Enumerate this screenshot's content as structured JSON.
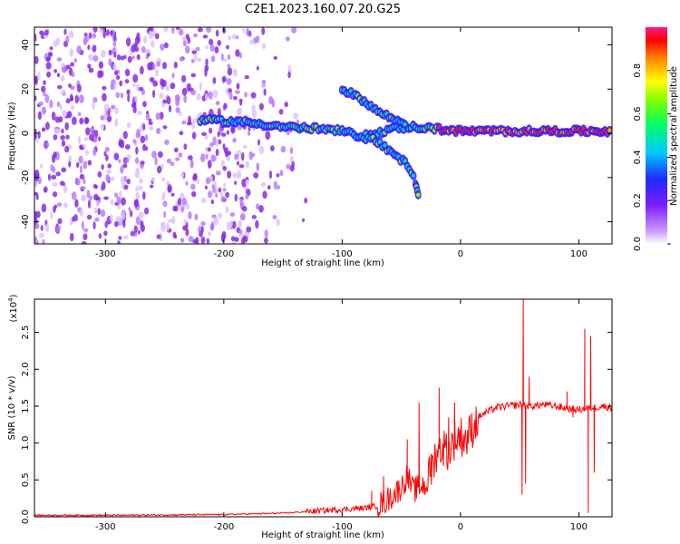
{
  "title": "C2E1.2023.160.07.20.G25",
  "chart_data": [
    {
      "type": "heatmap",
      "xlabel": "Height of straight line (km)",
      "ylabel": "Frequency (Hz)",
      "xlim": [
        -360,
        128
      ],
      "ylim": [
        -50,
        48
      ],
      "xticks": [
        -300,
        -200,
        -100,
        0,
        100
      ],
      "yticks": [
        -40,
        -20,
        0,
        20,
        40
      ],
      "colorbar": {
        "label": "Normalized spectral amplitude",
        "ticks": [
          0.0,
          0.2,
          0.4,
          0.6,
          0.8
        ],
        "range": [
          0,
          1
        ],
        "colormap": "rainbow (white/violet low → blue → cyan → green → yellow → red high)"
      },
      "features": {
        "noise_region_x": [
          -360,
          -130
        ],
        "main_track": [
          [
            -220,
            6
          ],
          [
            -180,
            5
          ],
          [
            -150,
            3
          ],
          [
            -120,
            2
          ],
          [
            -100,
            1
          ],
          [
            -80,
            -2
          ],
          [
            -60,
            2
          ],
          [
            -40,
            3
          ],
          [
            -20,
            2
          ],
          [
            0,
            1
          ],
          [
            50,
            1
          ],
          [
            128,
            1
          ]
        ],
        "upper_branch": [
          [
            -100,
            20
          ],
          [
            -85,
            16
          ],
          [
            -70,
            10
          ],
          [
            -55,
            6
          ],
          [
            -45,
            4
          ]
        ],
        "lower_branch": [
          [
            -80,
            0
          ],
          [
            -60,
            -8
          ],
          [
            -45,
            -14
          ],
          [
            -38,
            -22
          ],
          [
            -35,
            -30
          ]
        ]
      }
    },
    {
      "type": "line",
      "xlabel": "Height of straight line (km)",
      "ylabel": "SNR (10 * v/v)",
      "multiplier": "(x10",
      "multiplier_exp": "4",
      "multiplier_close": ")",
      "xlim": [
        -360,
        128
      ],
      "ylim": [
        0,
        2.95
      ],
      "xticks": [
        -300,
        -200,
        -100,
        0,
        100
      ],
      "yticks": [
        "0.0",
        "0.5",
        "1.0",
        "1.5",
        "2.0",
        "2.5"
      ],
      "series": [
        {
          "color": "#ff0000",
          "points": [
            [
              -360,
              0.02
            ],
            [
              -300,
              0.02
            ],
            [
              -250,
              0.025
            ],
            [
              -200,
              0.03
            ],
            [
              -150,
              0.05
            ],
            [
              -100,
              0.1
            ],
            [
              -80,
              0.12
            ],
            [
              -70,
              0.15
            ],
            [
              -60,
              0.25
            ],
            [
              -50,
              0.4
            ],
            [
              -45,
              0.55
            ],
            [
              -40,
              0.35
            ],
            [
              -30,
              0.45
            ],
            [
              -25,
              0.6
            ],
            [
              -20,
              0.9
            ],
            [
              -15,
              0.95
            ],
            [
              -10,
              0.9
            ],
            [
              -5,
              1.05
            ],
            [
              0,
              1.1
            ],
            [
              5,
              1.05
            ],
            [
              10,
              1.2
            ],
            [
              15,
              1.35
            ],
            [
              20,
              1.4
            ],
            [
              30,
              1.48
            ],
            [
              40,
              1.5
            ],
            [
              50,
              1.52
            ],
            [
              60,
              1.5
            ],
            [
              70,
              1.52
            ],
            [
              80,
              1.5
            ],
            [
              90,
              1.47
            ],
            [
              100,
              1.45
            ],
            [
              110,
              1.48
            ],
            [
              120,
              1.5
            ],
            [
              128,
              1.48
            ]
          ],
          "spikes": [
            [
              -75,
              0.35
            ],
            [
              -65,
              0.55
            ],
            [
              -45,
              1.05
            ],
            [
              -35,
              1.55
            ],
            [
              -25,
              0.85
            ],
            [
              -18,
              1.75
            ],
            [
              -10,
              1.35
            ],
            [
              -5,
              1.55
            ],
            [
              53,
              2.95
            ],
            [
              52,
              0.3
            ],
            [
              55,
              0.45
            ],
            [
              58,
              1.9
            ],
            [
              90,
              1.7
            ],
            [
              95,
              1.35
            ],
            [
              105,
              2.55
            ],
            [
              108,
              0.05
            ],
            [
              110,
              2.45
            ],
            [
              113,
              0.6
            ]
          ]
        }
      ]
    }
  ]
}
